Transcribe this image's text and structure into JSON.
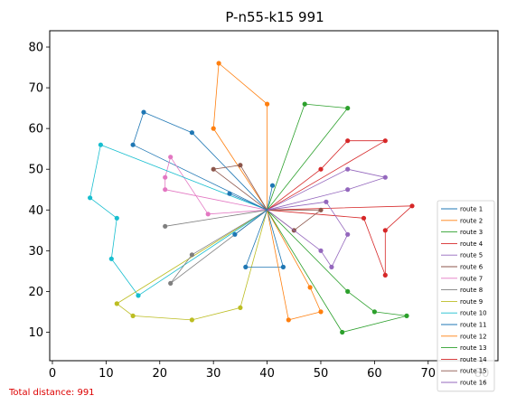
{
  "chart_data": {
    "type": "line",
    "title": "P-n55-k15 991",
    "xlabel": "",
    "ylabel": "",
    "xlim": [
      -0.5,
      83
    ],
    "ylim": [
      3,
      84
    ],
    "xticks": [
      0,
      10,
      20,
      30,
      40,
      50,
      60,
      70,
      80
    ],
    "yticks": [
      10,
      20,
      30,
      40,
      50,
      60,
      70,
      80
    ],
    "grid": false,
    "legend_position": "lower-right",
    "depot": [
      40,
      40
    ],
    "series": [
      {
        "name": "route 1",
        "color": "#1f77b4",
        "points": [
          [
            40,
            40
          ],
          [
            26,
            59
          ],
          [
            17,
            64
          ],
          [
            15,
            56
          ],
          [
            40,
            40
          ]
        ]
      },
      {
        "name": "route 2",
        "color": "#ff7f0e",
        "points": [
          [
            40,
            40
          ],
          [
            40,
            66
          ],
          [
            31,
            76
          ],
          [
            30,
            60
          ],
          [
            40,
            40
          ]
        ]
      },
      {
        "name": "route 3",
        "color": "#2ca02c",
        "points": [
          [
            40,
            40
          ],
          [
            47,
            66
          ],
          [
            55,
            65
          ],
          [
            40,
            40
          ]
        ]
      },
      {
        "name": "route 4",
        "color": "#d62728",
        "points": [
          [
            40,
            40
          ],
          [
            50,
            50
          ],
          [
            55,
            57
          ],
          [
            62,
            57
          ],
          [
            40,
            40
          ]
        ]
      },
      {
        "name": "route 5",
        "color": "#9467bd",
        "points": [
          [
            40,
            40
          ],
          [
            55,
            50
          ],
          [
            62,
            48
          ],
          [
            55,
            45
          ],
          [
            40,
            40
          ]
        ]
      },
      {
        "name": "route 6",
        "color": "#8c564b",
        "points": [
          [
            40,
            40
          ],
          [
            35,
            51
          ],
          [
            30,
            50
          ],
          [
            40,
            40
          ]
        ]
      },
      {
        "name": "route 7",
        "color": "#e377c2",
        "points": [
          [
            40,
            40
          ],
          [
            21,
            45
          ],
          [
            21,
            48
          ],
          [
            22,
            53
          ],
          [
            29,
            39
          ],
          [
            40,
            40
          ]
        ]
      },
      {
        "name": "route 8",
        "color": "#7f7f7f",
        "points": [
          [
            40,
            40
          ],
          [
            21,
            36
          ],
          [
            40,
            40
          ]
        ]
      },
      {
        "name": "route 9",
        "color": "#bcbd22",
        "points": [
          [
            40,
            40
          ],
          [
            12,
            17
          ],
          [
            15,
            14
          ],
          [
            26,
            13
          ],
          [
            35,
            16
          ],
          [
            40,
            40
          ]
        ]
      },
      {
        "name": "route 10",
        "color": "#17becf",
        "points": [
          [
            40,
            40
          ],
          [
            9,
            56
          ],
          [
            7,
            43
          ],
          [
            12,
            38
          ],
          [
            11,
            28
          ],
          [
            16,
            19
          ],
          [
            40,
            40
          ]
        ]
      },
      {
        "name": "route 11",
        "color": "#1f77b4",
        "points": [
          [
            40,
            40
          ],
          [
            36,
            26
          ],
          [
            43,
            26
          ],
          [
            40,
            40
          ]
        ]
      },
      {
        "name": "route 12",
        "color": "#ff7f0e",
        "points": [
          [
            40,
            40
          ],
          [
            44,
            13
          ],
          [
            50,
            15
          ],
          [
            48,
            21
          ],
          [
            40,
            40
          ]
        ]
      },
      {
        "name": "route 13",
        "color": "#2ca02c",
        "points": [
          [
            40,
            40
          ],
          [
            55,
            20
          ],
          [
            60,
            15
          ],
          [
            66,
            14
          ],
          [
            54,
            10
          ],
          [
            40,
            40
          ]
        ]
      },
      {
        "name": "route 14",
        "color": "#d62728",
        "points": [
          [
            40,
            40
          ],
          [
            67,
            41
          ],
          [
            62,
            35
          ],
          [
            62,
            24
          ],
          [
            58,
            38
          ],
          [
            40,
            40
          ]
        ]
      },
      {
        "name": "route 15",
        "color": "#8c564b",
        "points": [
          [
            40,
            40
          ],
          [
            45,
            35
          ],
          [
            50,
            40
          ],
          [
            40,
            40
          ]
        ]
      },
      {
        "name": "route 16",
        "color": "#9467bd",
        "points": [
          [
            40,
            40
          ],
          [
            51,
            42
          ],
          [
            55,
            34
          ],
          [
            52,
            26
          ],
          [
            50,
            30
          ],
          [
            40,
            40
          ]
        ]
      },
      {
        "name": "",
        "color": "#7f7f7f",
        "points": [
          [
            40,
            40
          ],
          [
            26,
            29
          ],
          [
            22,
            22
          ],
          [
            40,
            40
          ]
        ]
      },
      {
        "name": "",
        "color": "#1f77b4",
        "points": [
          [
            40,
            40
          ],
          [
            33,
            44
          ],
          [
            40,
            40
          ]
        ]
      },
      {
        "name": "",
        "color": "#1f77b4",
        "points": [
          [
            40,
            40
          ],
          [
            41,
            46
          ],
          [
            40,
            40
          ]
        ]
      },
      {
        "name": "",
        "color": "#1f77b4",
        "points": [
          [
            40,
            40
          ],
          [
            34,
            34
          ],
          [
            40,
            40
          ]
        ]
      }
    ],
    "annotation": "Total distance: 991"
  }
}
